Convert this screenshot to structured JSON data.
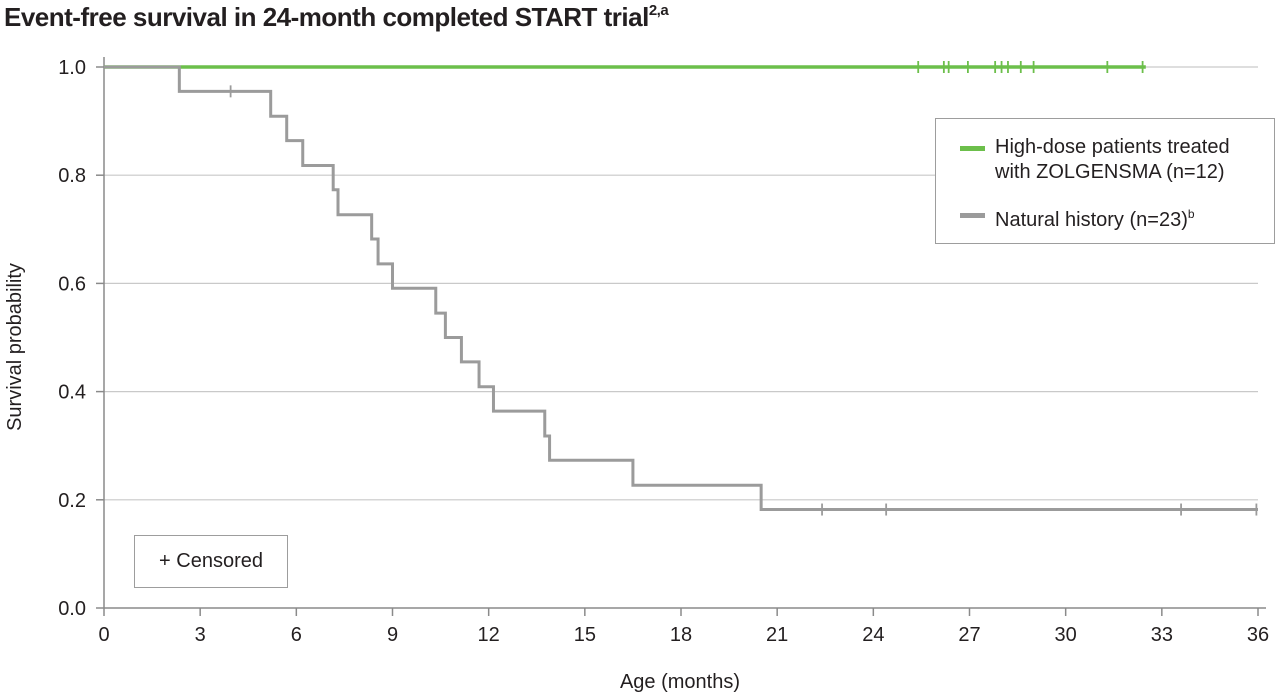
{
  "title": {
    "text": "Event-free survival in 24-month completed START trial",
    "superscript": "2,a"
  },
  "colors": {
    "high_dose": "#6cbf4b",
    "natural_history": "#9b9b9b",
    "grid": "#c9c9c9",
    "axis": "#8a8a8a"
  },
  "legend": {
    "items": [
      {
        "label": "High-dose patients treated with ZOLGENSMA (n=12)",
        "superscript": ""
      },
      {
        "label": "Natural history (n=23)",
        "superscript": "b"
      }
    ]
  },
  "censor_note": "+ Censored",
  "chart_data": {
    "type": "line",
    "title": "Event-free survival in 24-month completed START trial",
    "xlabel": "Age (months)",
    "ylabel": "Survival probability",
    "xlim": [
      0,
      36
    ],
    "ylim": [
      0,
      1
    ],
    "x_ticks": [
      0,
      3,
      6,
      9,
      12,
      15,
      18,
      21,
      24,
      27,
      30,
      33,
      36
    ],
    "x_tick_labels": [
      "0",
      "3",
      "6",
      "9",
      "12",
      "15",
      "18",
      "21",
      "24",
      "27",
      "30",
      "33",
      "36"
    ],
    "y_ticks": [
      0,
      0.2,
      0.4,
      0.6,
      0.8,
      1.0
    ],
    "y_tick_labels": [
      "0.0",
      "0.2",
      "0.4",
      "0.6",
      "0.8",
      "1.0"
    ],
    "grid": "horizontal",
    "legend_position": "top-right",
    "series": [
      {
        "name": "High-dose patients treated with ZOLGENSMA (n=12)",
        "step": true,
        "points": [
          [
            0,
            1.0
          ],
          [
            32.5,
            1.0
          ]
        ],
        "censored": [
          {
            "x": 25.4,
            "y": 1.0
          },
          {
            "x": 26.2,
            "y": 1.0
          },
          {
            "x": 26.35,
            "y": 1.0
          },
          {
            "x": 26.95,
            "y": 1.0
          },
          {
            "x": 27.8,
            "y": 1.0
          },
          {
            "x": 28.0,
            "y": 1.0
          },
          {
            "x": 28.2,
            "y": 1.0
          },
          {
            "x": 28.6,
            "y": 1.0
          },
          {
            "x": 29.0,
            "y": 1.0
          },
          {
            "x": 31.3,
            "y": 1.0
          },
          {
            "x": 32.4,
            "y": 1.0
          }
        ]
      },
      {
        "name": "Natural history (n=23)",
        "step": true,
        "points": [
          [
            0,
            1.0
          ],
          [
            2.35,
            0.955
          ],
          [
            5.2,
            0.909
          ],
          [
            5.7,
            0.864
          ],
          [
            6.2,
            0.818
          ],
          [
            7.15,
            0.773
          ],
          [
            7.3,
            0.727
          ],
          [
            8.35,
            0.682
          ],
          [
            8.55,
            0.636
          ],
          [
            9.0,
            0.591
          ],
          [
            10.35,
            0.545
          ],
          [
            10.65,
            0.5
          ],
          [
            11.15,
            0.455
          ],
          [
            11.7,
            0.409
          ],
          [
            12.15,
            0.364
          ],
          [
            13.75,
            0.318
          ],
          [
            13.9,
            0.273
          ],
          [
            16.5,
            0.227
          ],
          [
            20.5,
            0.182
          ],
          [
            36.0,
            0.182
          ]
        ],
        "censored": [
          {
            "x": 3.95,
            "y": 0.955
          },
          {
            "x": 22.4,
            "y": 0.182
          },
          {
            "x": 24.4,
            "y": 0.182
          },
          {
            "x": 33.6,
            "y": 0.182
          },
          {
            "x": 35.95,
            "y": 0.182
          }
        ]
      }
    ]
  }
}
